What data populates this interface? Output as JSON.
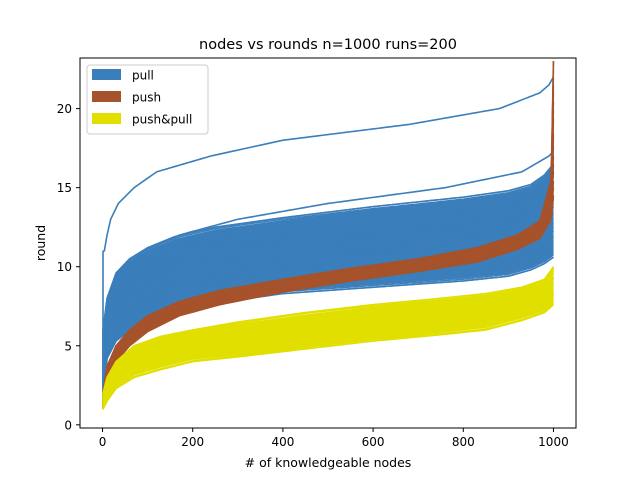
{
  "chart_data": {
    "type": "line",
    "title": "nodes vs rounds n=1000 runs=200",
    "xlabel": "# of knowledgeable nodes",
    "ylabel": "round",
    "xlim": [
      -50,
      1050
    ],
    "ylim": [
      -0.2,
      23.2
    ],
    "xticks": [
      0,
      200,
      400,
      600,
      800,
      1000
    ],
    "yticks": [
      0,
      5,
      10,
      15,
      20
    ],
    "legend_placement": "top-left",
    "grid": false,
    "series": [
      {
        "name": "pull",
        "color": "#3a7ebb",
        "runs": 200,
        "band_lower": {
          "x": [
            1,
            10,
            30,
            60,
            100,
            160,
            250,
            400,
            600,
            800,
            900,
            950,
            980,
            1000
          ],
          "y": [
            1,
            4.2,
            5.3,
            6.0,
            6.6,
            7.2,
            7.7,
            8.3,
            8.7,
            9.1,
            9.4,
            9.8,
            10.2,
            10.6
          ]
        },
        "band_upper": {
          "x": [
            1,
            10,
            30,
            60,
            100,
            160,
            250,
            400,
            600,
            800,
            900,
            950,
            980,
            1000
          ],
          "y": [
            6,
            8.0,
            9.6,
            10.5,
            11.2,
            11.9,
            12.5,
            13.1,
            13.8,
            14.4,
            14.8,
            15.2,
            15.8,
            16.5
          ]
        },
        "highlight_lines": [
          {
            "x": [
              1,
              4,
              10,
              18,
              35,
              70,
              120,
              240,
              400,
              680,
              880,
              970,
              990,
              1000
            ],
            "y": [
              11,
              11,
              12,
              13,
              14,
              15,
              16,
              17,
              18,
              19,
              20,
              21,
              21.5,
              22
            ]
          },
          {
            "x": [
              1,
              10,
              40,
              90,
              170,
              300,
              500,
              760,
              930,
              990,
              1000
            ],
            "y": [
              6,
              7.5,
              9.5,
              11,
              12,
              13,
              14,
              15,
              16,
              17,
              17.3
            ]
          }
        ]
      },
      {
        "name": "push",
        "color": "#a6522b",
        "runs": 200,
        "band_lower": {
          "x": [
            1,
            10,
            30,
            60,
            100,
            170,
            260,
            400,
            550,
            700,
            830,
            920,
            970,
            995,
            1000
          ],
          "y": [
            1,
            2.6,
            4.0,
            5.0,
            5.9,
            6.9,
            7.6,
            8.4,
            9.1,
            9.7,
            10.3,
            11.1,
            11.8,
            13.0,
            14.5
          ]
        },
        "band_upper": {
          "x": [
            1,
            10,
            30,
            60,
            100,
            170,
            260,
            400,
            550,
            700,
            830,
            920,
            970,
            995,
            1000
          ],
          "y": [
            2,
            3.7,
            5.0,
            6.0,
            6.9,
            7.8,
            8.5,
            9.2,
            9.9,
            10.5,
            11.2,
            12.0,
            12.9,
            15.5,
            23.0
          ]
        }
      },
      {
        "name": "push&pull",
        "color": "#e0df00",
        "runs": 200,
        "band_lower": {
          "x": [
            1,
            10,
            30,
            70,
            130,
            200,
            300,
            450,
            600,
            750,
            850,
            930,
            980,
            1000
          ],
          "y": [
            1,
            1.5,
            2.3,
            3.0,
            3.5,
            4.0,
            4.3,
            4.8,
            5.3,
            5.7,
            6.0,
            6.6,
            7.1,
            7.6
          ]
        },
        "band_upper": {
          "x": [
            1,
            10,
            30,
            70,
            130,
            200,
            300,
            450,
            600,
            750,
            850,
            930,
            980,
            1000
          ],
          "y": [
            2,
            3.0,
            4.0,
            5.0,
            5.6,
            6.0,
            6.5,
            7.1,
            7.6,
            8.0,
            8.3,
            8.7,
            9.2,
            10.0
          ]
        }
      }
    ]
  }
}
